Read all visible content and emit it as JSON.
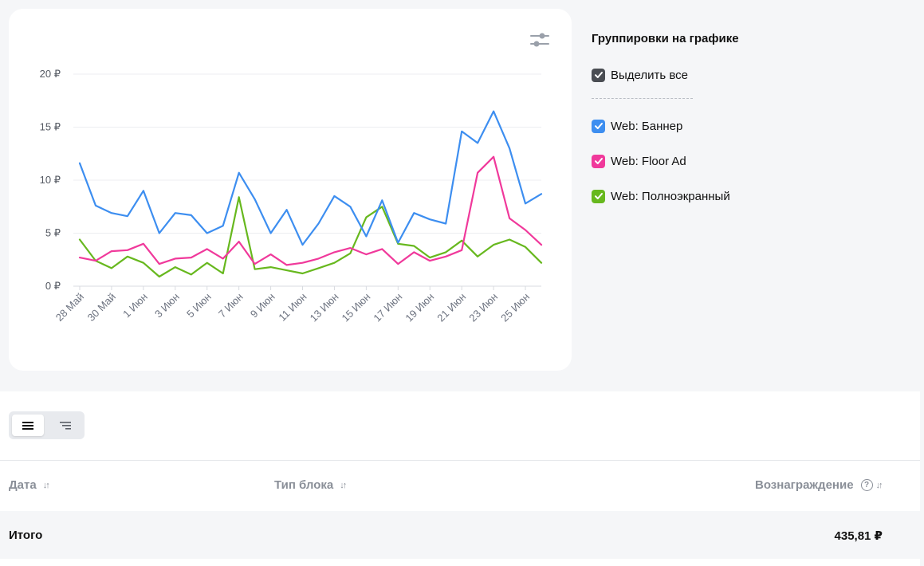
{
  "legend": {
    "title": "Группировки на графике",
    "select_all": "Выделить все",
    "items": [
      {
        "label": "Web: Баннер",
        "color": "#3d8ef0"
      },
      {
        "label": "Web: Floor Ad",
        "color": "#f0399b"
      },
      {
        "label": "Web: Полноэкранный",
        "color": "#67b81e"
      }
    ]
  },
  "chart_data": {
    "type": "line",
    "x": [
      "28 Май",
      "29 Май",
      "30 Май",
      "31 Май",
      "1 Июн",
      "2 Июн",
      "3 Июн",
      "4 Июн",
      "5 Июн",
      "6 Июн",
      "7 Июн",
      "8 Июн",
      "9 Июн",
      "10 Июн",
      "11 Июн",
      "12 Июн",
      "13 Июн",
      "14 Июн",
      "15 Июн",
      "16 Июн",
      "17 Июн",
      "18 Июн",
      "19 Июн",
      "20 Июн",
      "21 Июн",
      "22 Июн",
      "23 Июн",
      "24 Июн",
      "25 Июн",
      "26 Июн"
    ],
    "x_tick_labels": [
      "28 Май",
      "30 Май",
      "1 Июн",
      "3 Июн",
      "5 Июн",
      "7 Июн",
      "9 Июн",
      "11 Июн",
      "13 Июн",
      "15 Июн",
      "17 Июн",
      "19 Июн",
      "21 Июн",
      "23 Июн",
      "25 Июн"
    ],
    "y_tick_labels": [
      "0 ₽",
      "5 ₽",
      "10 ₽",
      "15 ₽",
      "20 ₽"
    ],
    "ylim": [
      0,
      20
    ],
    "grid": true,
    "series": [
      {
        "name": "Web: Баннер",
        "color": "#3d8ef0",
        "values": [
          11.6,
          7.6,
          6.9,
          6.6,
          9.0,
          5.0,
          6.9,
          6.7,
          5.0,
          5.7,
          10.7,
          8.2,
          5.0,
          7.2,
          3.9,
          5.9,
          8.5,
          7.5,
          4.7,
          8.1,
          4.1,
          6.9,
          6.3,
          5.9,
          14.6,
          13.5,
          16.5,
          13.0,
          7.8,
          8.7
        ]
      },
      {
        "name": "Web: Floor Ad",
        "color": "#f0399b",
        "values": [
          2.7,
          2.4,
          3.3,
          3.4,
          4.0,
          2.1,
          2.6,
          2.7,
          3.5,
          2.6,
          4.2,
          2.1,
          3.0,
          2.0,
          2.2,
          2.6,
          3.2,
          3.6,
          3.0,
          3.5,
          2.1,
          3.2,
          2.4,
          2.8,
          3.4,
          10.7,
          12.2,
          6.4,
          5.3,
          3.9
        ]
      },
      {
        "name": "Web: Полноэкранный",
        "color": "#67b81e",
        "values": [
          4.4,
          2.4,
          1.7,
          2.8,
          2.2,
          0.9,
          1.8,
          1.1,
          2.2,
          1.2,
          8.4,
          1.6,
          1.8,
          1.5,
          1.2,
          1.7,
          2.2,
          3.1,
          6.5,
          7.5,
          4.0,
          3.8,
          2.7,
          3.2,
          4.3,
          2.8,
          3.9,
          4.4,
          3.7,
          2.2
        ]
      }
    ]
  },
  "view_toggle": {
    "active": "list-icon",
    "inactive": "tree-icon"
  },
  "table": {
    "columns": [
      {
        "label": "Дата",
        "sort": "↓↑"
      },
      {
        "label": "Тип блока",
        "sort": "↓↑"
      },
      {
        "label": "Вознаграждение",
        "help": "?",
        "sort": "↓↑"
      }
    ],
    "total_label": "Итого",
    "total_value": "435,81 ₽"
  }
}
